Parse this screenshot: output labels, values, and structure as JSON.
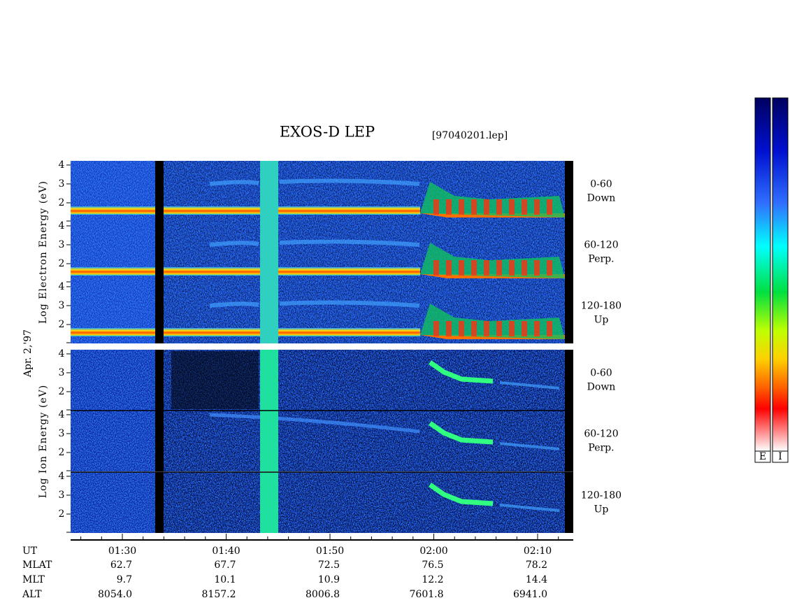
{
  "chart_data": {
    "type": "spectrogram",
    "title": "EXOS-D LEP",
    "file_label": "[97040201.lep]",
    "date_label": "Apr. 2,'97",
    "ylim": [
      1,
      4.22
    ],
    "yticks": [
      2,
      3,
      4
    ],
    "xticks": [
      "01:30",
      "01:40",
      "01:50",
      "02:00",
      "02:10"
    ],
    "groups": [
      {
        "axis_label": "Log Electron Energy (eV)",
        "colorbar_label": "E",
        "panels": [
          {
            "label": [
              "0-60",
              "Down"
            ]
          },
          {
            "label": [
              "60-120",
              "Perp."
            ]
          },
          {
            "label": [
              "120-180",
              "Up"
            ]
          }
        ]
      },
      {
        "axis_label": "Log Ion Energy (eV)",
        "colorbar_label": "I",
        "panels": [
          {
            "label": [
              "0-60",
              "Down"
            ]
          },
          {
            "label": [
              "60-120",
              "Perp."
            ]
          },
          {
            "label": [
              "120-180",
              "Up"
            ]
          }
        ]
      }
    ],
    "orbit_rows": [
      {
        "name": "UT"
      },
      {
        "name": "MLAT",
        "values": [
          "62.7",
          "67.7",
          "72.5",
          "76.5",
          "78.2"
        ]
      },
      {
        "name": "MLT",
        "values": [
          "9.7",
          "10.1",
          "10.9",
          "12.2",
          "14.4"
        ]
      },
      {
        "name": "ALT",
        "values": [
          "8054.0",
          "8157.2",
          "8006.8",
          "7601.8",
          "6941.0"
        ]
      }
    ]
  }
}
